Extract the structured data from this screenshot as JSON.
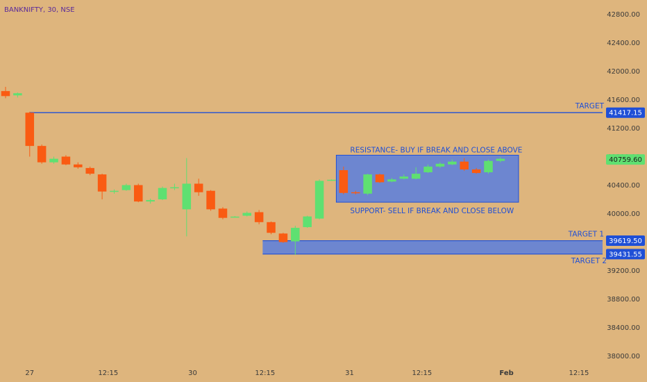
{
  "header": {
    "symbol_label": "BANKNIFTY, 30, NSE"
  },
  "chart_data": {
    "type": "candlestick",
    "y_ticks": [
      38000,
      38400,
      38800,
      39200,
      39600,
      40000,
      40400,
      40800,
      41200,
      41600,
      42000,
      42400,
      42800
    ],
    "y_tick_labels": [
      "38000.00",
      "38400.00",
      "38800.00",
      "39200.00",
      "39600.00",
      "40000.00",
      "40400.00",
      "40800.00",
      "41200.00",
      "41600.00",
      "42000.00",
      "42400.00",
      "42800.00"
    ],
    "ylim": [
      37850,
      42960
    ],
    "x_range": [
      0,
      49
    ],
    "x_ticks": [
      {
        "label": "27",
        "x": 2,
        "bold": false
      },
      {
        "label": "12:15",
        "x": 8.5,
        "bold": false
      },
      {
        "label": "30",
        "x": 15.5,
        "bold": false
      },
      {
        "label": "12:15",
        "x": 21.5,
        "bold": false
      },
      {
        "label": "31",
        "x": 28.5,
        "bold": false
      },
      {
        "label": "12:15",
        "x": 34.5,
        "bold": false
      },
      {
        "label": "Feb",
        "x": 41.5,
        "bold": true
      },
      {
        "label": "12:15",
        "x": 47.5,
        "bold": false
      }
    ],
    "candles": [
      {
        "x": 0,
        "open": 41720,
        "high": 41780,
        "low": 41620,
        "close": 41650
      },
      {
        "x": 1,
        "open": 41660,
        "high": 41700,
        "low": 41630,
        "close": 41690
      },
      {
        "x": 2,
        "open": 41417,
        "high": 41430,
        "low": 40800,
        "close": 40950
      },
      {
        "x": 3,
        "open": 40950,
        "high": 40970,
        "low": 40700,
        "close": 40720
      },
      {
        "x": 4,
        "open": 40720,
        "high": 40800,
        "low": 40700,
        "close": 40770
      },
      {
        "x": 5,
        "open": 40800,
        "high": 40820,
        "low": 40680,
        "close": 40690
      },
      {
        "x": 6,
        "open": 40690,
        "high": 40720,
        "low": 40630,
        "close": 40650
      },
      {
        "x": 7,
        "open": 40640,
        "high": 40660,
        "low": 40540,
        "close": 40560
      },
      {
        "x": 8,
        "open": 40550,
        "high": 40560,
        "low": 40200,
        "close": 40310
      },
      {
        "x": 9,
        "open": 40310,
        "high": 40340,
        "low": 40280,
        "close": 40320
      },
      {
        "x": 10,
        "open": 40330,
        "high": 40420,
        "low": 40320,
        "close": 40400
      },
      {
        "x": 11,
        "open": 40400,
        "high": 40420,
        "low": 40160,
        "close": 40170
      },
      {
        "x": 12,
        "open": 40170,
        "high": 40210,
        "low": 40140,
        "close": 40190
      },
      {
        "x": 13,
        "open": 40200,
        "high": 40380,
        "low": 40190,
        "close": 40360
      },
      {
        "x": 14,
        "open": 40370,
        "high": 40420,
        "low": 40330,
        "close": 40370
      },
      {
        "x": 15,
        "open": 40060,
        "high": 40780,
        "low": 39680,
        "close": 40420
      },
      {
        "x": 16,
        "open": 40420,
        "high": 40490,
        "low": 40250,
        "close": 40300
      },
      {
        "x": 17,
        "open": 40320,
        "high": 40330,
        "low": 40040,
        "close": 40060
      },
      {
        "x": 18,
        "open": 40070,
        "high": 40090,
        "low": 39920,
        "close": 39940
      },
      {
        "x": 19,
        "open": 39950,
        "high": 39965,
        "low": 39945,
        "close": 39958
      },
      {
        "x": 20,
        "open": 39970,
        "high": 40030,
        "low": 39960,
        "close": 40010
      },
      {
        "x": 21,
        "open": 40020,
        "high": 40050,
        "low": 39850,
        "close": 39880
      },
      {
        "x": 22,
        "open": 39880,
        "high": 39890,
        "low": 39710,
        "close": 39730
      },
      {
        "x": 23,
        "open": 39720,
        "high": 39730,
        "low": 39590,
        "close": 39600
      },
      {
        "x": 24,
        "open": 39610,
        "high": 39830,
        "low": 39420,
        "close": 39800
      },
      {
        "x": 25,
        "open": 39810,
        "high": 39970,
        "low": 39800,
        "close": 39960
      },
      {
        "x": 26,
        "open": 39930,
        "high": 40480,
        "low": 39920,
        "close": 40460
      },
      {
        "x": 27,
        "open": 40470,
        "high": 40480,
        "low": 40460,
        "close": 40475
      },
      {
        "x": 28,
        "open": 40610,
        "high": 40660,
        "low": 40270,
        "close": 40290
      },
      {
        "x": 29,
        "open": 40300,
        "high": 40320,
        "low": 40270,
        "close": 40290
      },
      {
        "x": 30,
        "open": 40280,
        "high": 40560,
        "low": 40260,
        "close": 40550
      },
      {
        "x": 31,
        "open": 40550,
        "high": 40560,
        "low": 40430,
        "close": 40440
      },
      {
        "x": 32,
        "open": 40450,
        "high": 40500,
        "low": 40440,
        "close": 40480
      },
      {
        "x": 33,
        "open": 40490,
        "high": 40550,
        "low": 40480,
        "close": 40520
      },
      {
        "x": 34,
        "open": 40490,
        "high": 40650,
        "low": 40480,
        "close": 40560
      },
      {
        "x": 35,
        "open": 40580,
        "high": 40690,
        "low": 40570,
        "close": 40660
      },
      {
        "x": 36,
        "open": 40660,
        "high": 40720,
        "low": 40640,
        "close": 40700
      },
      {
        "x": 37,
        "open": 40690,
        "high": 40760,
        "low": 40680,
        "close": 40730
      },
      {
        "x": 38,
        "open": 40730,
        "high": 40780,
        "low": 40600,
        "close": 40620
      },
      {
        "x": 39,
        "open": 40620,
        "high": 40640,
        "low": 40560,
        "close": 40570
      },
      {
        "x": 40,
        "open": 40580,
        "high": 40760,
        "low": 40560,
        "close": 40740
      },
      {
        "x": 41,
        "open": 40740,
        "high": 40790,
        "low": 40720,
        "close": 40770
      }
    ],
    "colors": {
      "up": "#5fe071",
      "down": "#fa5b12",
      "line": "#1f4fd6",
      "zone_fill": "#6d86d0",
      "zone_border": "#1f4fd6",
      "background": "#deb57d",
      "text": "#3a3a3a",
      "symbol": "#5a2a9a"
    },
    "annotations": {
      "target_line": {
        "price": 41417.15,
        "x_start": 2,
        "label": "TARGET",
        "price_label": "41417.15"
      },
      "range_box": {
        "x_start": 27.4,
        "x_end": 42.5,
        "top": 40820,
        "bottom": 40160,
        "top_label": "RESISTANCE- BUY IF BREAK AND CLOSE ABOVE",
        "bottom_label": "SUPPORT- SELL IF BREAK AND CLOSE BELOW"
      },
      "target_zone": {
        "x_start": 21.3,
        "top": 39619.5,
        "bottom": 39431.55,
        "top_label": "TARGET 1",
        "bottom_label": "TARGET 2",
        "top_price_label": "39619.50",
        "bottom_price_label": "39431.55"
      },
      "last_price": {
        "price": 40759.6,
        "label": "40759.60"
      }
    }
  }
}
